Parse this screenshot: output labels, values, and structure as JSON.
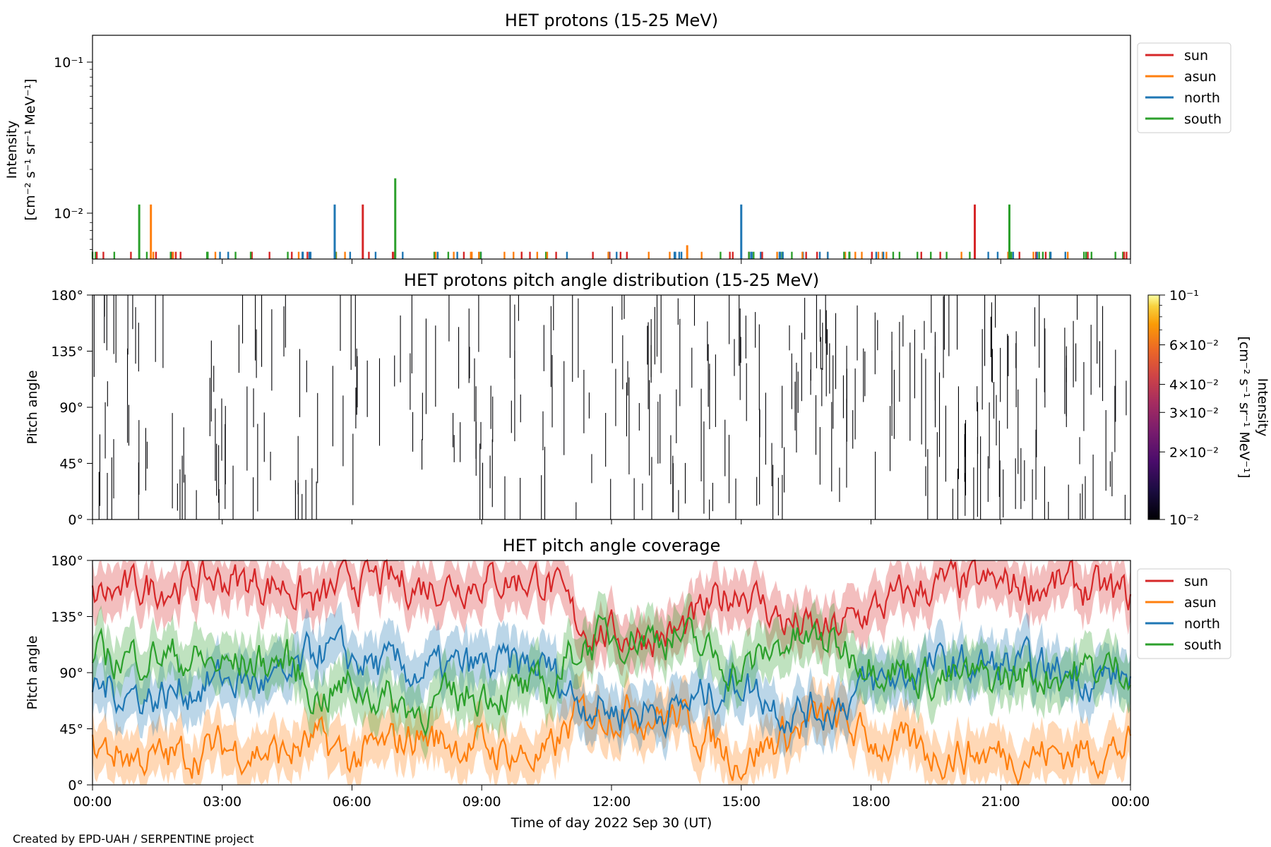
{
  "figure": {
    "credit": "Created by EPD-UAH / SERPENTINE project",
    "xlabel": "Time of day 2022 Sep 30 (UT)",
    "x_tick_labels": [
      "00:00",
      "03:00",
      "06:00",
      "09:00",
      "12:00",
      "15:00",
      "18:00",
      "21:00",
      "00:00"
    ]
  },
  "panels": {
    "intensity": {
      "title": "HET protons (15-25 MeV)",
      "ylabel_1": "Intensity",
      "ylabel_2": "[cm⁻² s⁻¹ sr⁻¹ MeV⁻¹]",
      "ytick_1": "10⁻¹",
      "ytick_2": "10⁻²"
    },
    "pad": {
      "title": "HET protons pitch angle distribution (15-25 MeV)",
      "ylabel": "Pitch angle",
      "colorbar_label_1": "Intensity",
      "colorbar_label_2": "[cm⁻² s⁻¹ sr⁻¹ MeV⁻¹]",
      "colorbar_ticks": [
        "10⁻¹",
        "6×10⁻²",
        "4×10⁻²",
        "3×10⁻²",
        "2×10⁻²",
        "10⁻²"
      ]
    },
    "coverage": {
      "title": "HET pitch angle coverage",
      "ylabel": "Pitch angle"
    }
  },
  "pitch_ticks": [
    "180°",
    "135°",
    "90°",
    "45°",
    "0°"
  ],
  "legend": [
    "sun",
    "asun",
    "north",
    "south"
  ],
  "colors": {
    "sun": "#d62728",
    "asun": "#ff7f0e",
    "north": "#1f77b4",
    "south": "#2ca02c"
  },
  "chart_data": [
    {
      "type": "line",
      "title": "HET protons (15-25 MeV)",
      "xlabel": "",
      "ylabel": "Intensity [cm⁻² s⁻¹ sr⁻¹ MeV⁻¹]",
      "x_unit": "hours since 2022-09-30 00:00 UT",
      "xlim": [
        0,
        24
      ],
      "ylim": [
        0.0052,
        0.15
      ],
      "yscale": "log",
      "background_level": 0.0058,
      "series": [
        {
          "name": "sun",
          "spikes": [
            [
              6.25,
              0.0118
            ],
            [
              20.4,
              0.0118
            ]
          ]
        },
        {
          "name": "asun",
          "spikes": [
            [
              1.35,
              0.0118
            ],
            [
              13.75,
              0.0064
            ]
          ]
        },
        {
          "name": "north",
          "spikes": [
            [
              5.6,
              0.0118
            ],
            [
              15.0,
              0.0118
            ]
          ]
        },
        {
          "name": "south",
          "spikes": [
            [
              1.08,
              0.0118
            ],
            [
              7.0,
              0.0175
            ],
            [
              21.2,
              0.0118
            ]
          ]
        }
      ],
      "legend_position": "upper right outside",
      "grid": false
    },
    {
      "type": "heatmap",
      "title": "HET protons pitch angle distribution (15-25 MeV)",
      "xlabel": "",
      "ylabel": "Pitch angle",
      "xlim": [
        0,
        24
      ],
      "ylim": [
        0,
        180
      ],
      "colorbar": {
        "label": "Intensity [cm⁻² s⁻¹ sr⁻¹ MeV⁻¹]",
        "scale": "log",
        "range": [
          0.01,
          0.1
        ],
        "colormap": "inferno"
      },
      "note": "sparse narrow vertical segments at background level (~10⁻²) across the day"
    },
    {
      "type": "line",
      "title": "HET pitch angle coverage",
      "xlabel": "Time of day 2022 Sep 30 (UT)",
      "ylabel": "Pitch angle",
      "xlim": [
        0,
        24
      ],
      "ylim": [
        0,
        180
      ],
      "x": [
        0,
        1.5,
        3,
        4.5,
        5.2,
        6,
        7.5,
        9,
        10.5,
        11.2,
        12,
        13.5,
        15,
        16,
        17,
        18,
        19.5,
        21,
        22.5,
        24
      ],
      "band_halfwidth_deg": 20,
      "series": [
        {
          "name": "sun",
          "values": [
            150,
            160,
            165,
            160,
            145,
            165,
            160,
            165,
            165,
            130,
            120,
            120,
            160,
            130,
            120,
            140,
            160,
            160,
            160,
            150
          ]
        },
        {
          "name": "asun",
          "values": [
            30,
            20,
            30,
            25,
            35,
            20,
            40,
            30,
            20,
            55,
            60,
            55,
            20,
            40,
            55,
            35,
            25,
            25,
            25,
            30
          ]
        },
        {
          "name": "north",
          "values": [
            80,
            70,
            85,
            80,
            110,
            100,
            90,
            95,
            95,
            70,
            60,
            60,
            85,
            60,
            60,
            80,
            95,
            95,
            90,
            85
          ]
        },
        {
          "name": "south",
          "values": [
            100,
            105,
            95,
            100,
            70,
            80,
            60,
            75,
            75,
            110,
            120,
            120,
            90,
            115,
            115,
            100,
            85,
            85,
            90,
            95
          ]
        }
      ],
      "legend_position": "upper right outside",
      "grid": false
    }
  ]
}
